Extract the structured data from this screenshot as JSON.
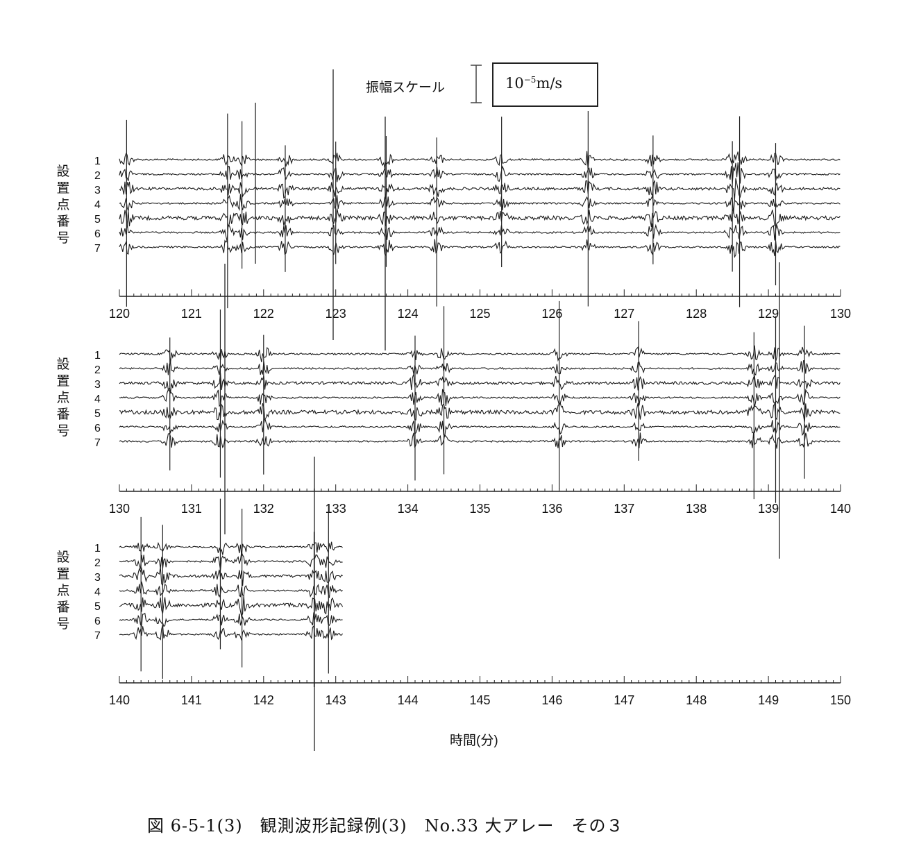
{
  "scale": {
    "label": "振幅スケール",
    "value_base": "10",
    "value_exp": "−5",
    "value_unit": "m/s"
  },
  "y_axis_label": "設置点番号",
  "x_axis_label": "時間(分)",
  "caption": "図 6-5-1(3)　観測波形記録例(3)　No.33 大アレー　その３",
  "chart_data": {
    "type": "line",
    "xlabel": "時間(分)",
    "ylabel": "設置点番号",
    "trace_labels": [
      "1",
      "2",
      "3",
      "4",
      "5",
      "6",
      "7"
    ],
    "panels": [
      {
        "xlim": [
          120,
          130
        ],
        "ticks": [
          120,
          121,
          122,
          123,
          124,
          125,
          126,
          127,
          128,
          129,
          130
        ],
        "data_end": 130,
        "events": [
          120.1,
          121.5,
          121.7,
          122.3,
          123.0,
          123.7,
          124.4,
          125.3,
          126.5,
          127.4,
          128.5,
          128.6,
          129.1
        ]
      },
      {
        "xlim": [
          130,
          140
        ],
        "ticks": [
          130,
          131,
          132,
          133,
          134,
          135,
          136,
          137,
          138,
          139,
          140
        ],
        "data_end": 140,
        "events": [
          130.7,
          131.4,
          132.0,
          134.1,
          134.5,
          136.1,
          137.2,
          138.8,
          139.1,
          139.5
        ]
      },
      {
        "xlim": [
          140,
          150
        ],
        "ticks": [
          140,
          141,
          142,
          143,
          144,
          145,
          146,
          147,
          148,
          149,
          150
        ],
        "data_end": 143.1,
        "events": [
          140.3,
          140.6,
          141.4,
          141.7,
          142.7,
          142.9
        ]
      }
    ]
  }
}
